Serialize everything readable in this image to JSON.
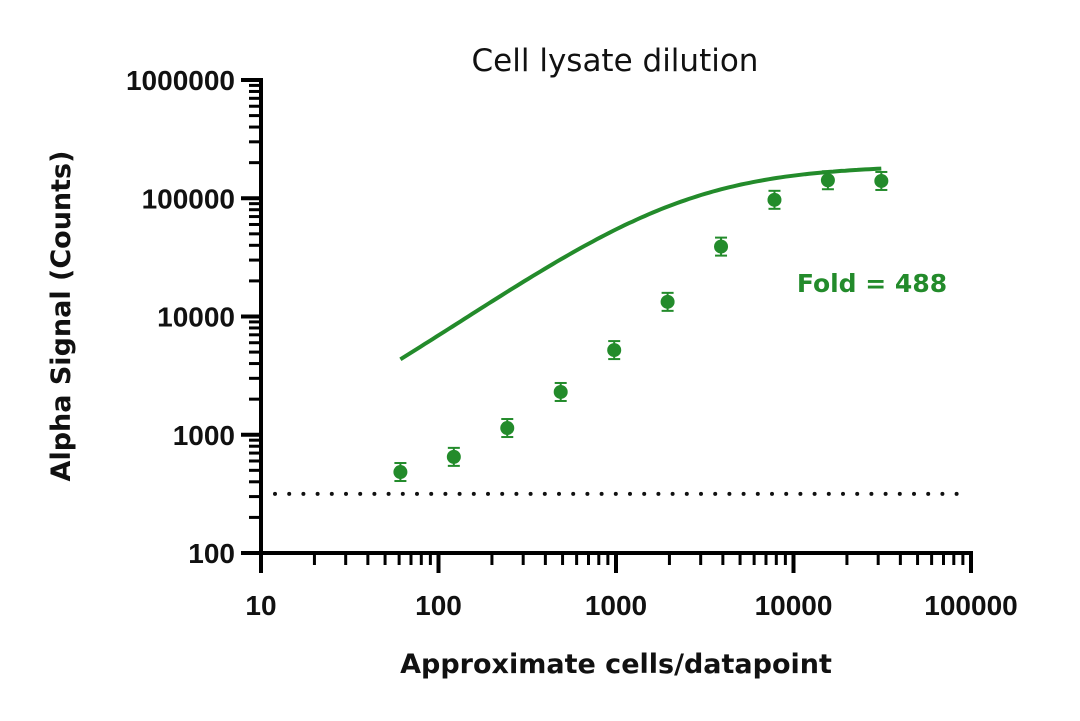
{
  "chart_data": {
    "type": "scatter",
    "title": "Cell lysate dilution",
    "xlabel": "Approximate cells/datapoint",
    "ylabel": "Alpha Signal (Counts)",
    "xscale": "log",
    "yscale": "log",
    "xlim": [
      10,
      100000
    ],
    "ylim": [
      100,
      1000000
    ],
    "x_ticks": [
      "10",
      "100",
      "1000",
      "10000",
      "100000"
    ],
    "y_ticks": [
      "100",
      "1000",
      "10000",
      "100000",
      "1000000"
    ],
    "grid": false,
    "legend": null,
    "series": [
      {
        "name": "Cell lysate",
        "color": "#238b2b",
        "marker": "circle",
        "fit": "sigmoidal 4PL curve",
        "x": [
          61,
          122,
          244,
          488,
          977,
          1953,
          3906,
          7813,
          15625,
          31250
        ],
        "y": [
          484,
          650,
          1140,
          2300,
          5200,
          13300,
          39000,
          97000,
          142000,
          140000
        ]
      }
    ],
    "reference_lines": [
      {
        "type": "horizontal",
        "style": "dotted",
        "y": 316,
        "color": "#111111",
        "x_range": [
          11,
          95000
        ]
      }
    ],
    "annotations": [
      {
        "text": "Fold = 488",
        "x": 40000,
        "y": 22000,
        "color": "#238b2b"
      }
    ]
  },
  "ui": {
    "title": "Cell lysate dilution",
    "xlabel": "Approximate cells/datapoint",
    "ylabel": "Alpha Signal (Counts)",
    "annotation": "Fold = 488",
    "x_ticks": [
      "10",
      "100",
      "1000",
      "10000",
      "100000"
    ],
    "y_ticks": [
      "100",
      "1000",
      "10000",
      "100000",
      "1000000"
    ],
    "accent_color": "#238b2b"
  }
}
